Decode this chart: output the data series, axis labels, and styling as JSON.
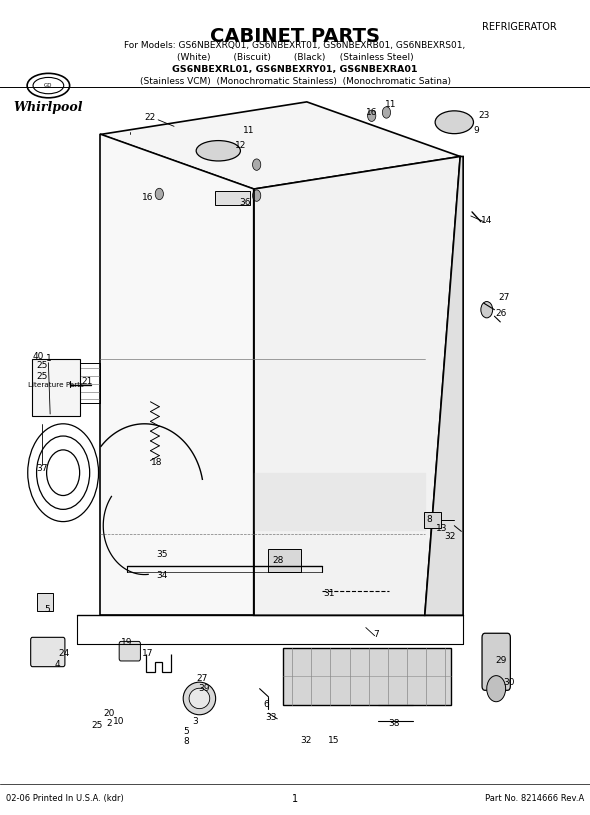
{
  "title": "CABINET PARTS",
  "refrigerator_label": "REFRIGERATOR",
  "model_line1": "For Models: GS6NBEXRQ01, GS6NBEXRT01, GS6NBEXRB01, GS6NBEXRS01,",
  "model_line2": "(White)        (Biscuit)        (Black)     (Stainless Steel)",
  "model_line3": "GS6NBEXRL01, GS6NBEXRY01, GS6NBEXRA01",
  "model_line4": "(Stainless VCM)  (Monochromatic Stainless)  (Monochromatic Satina)",
  "footer_left": "02-06 Printed In U.S.A. (kdr)",
  "footer_center": "1",
  "footer_right": "Part No. 8214666 Rev.A",
  "bg_color": "#ffffff",
  "line_color": "#000000"
}
